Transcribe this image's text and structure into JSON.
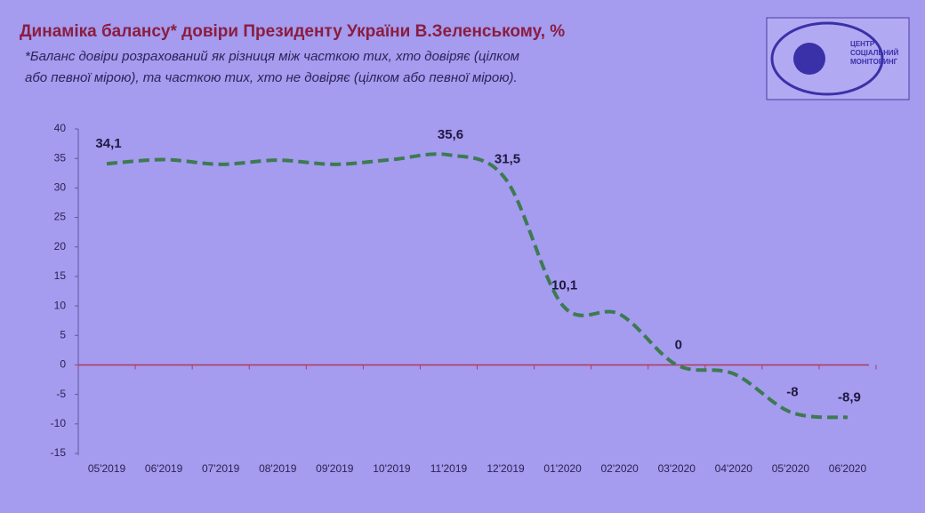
{
  "chart_data": {
    "type": "line",
    "title": "Динаміка балансу* довіри Президенту України В.Зеленському, %",
    "subtitle": [
      "*Баланс довіри розрахований як різниця між часткою тих, хто довіряє (цілком",
      "або певної мірою), та часткою тих, хто не довіряє (цілком або певної мірою)."
    ],
    "logo": [
      "ЦЕНТР",
      "СОЦІАЛЬНИЙ",
      "МОНІТОРИНГ"
    ],
    "categories": [
      "05'2019",
      "06'2019",
      "07'2019",
      "08'2019",
      "09'2019",
      "10'2019",
      "11'2019",
      "12'2019",
      "01'2020",
      "02'2020",
      "03'2020",
      "04'2020",
      "05'2020",
      "06'2020"
    ],
    "values": [
      34.1,
      34.8,
      34.0,
      34.7,
      34.0,
      34.8,
      35.6,
      31.5,
      10.1,
      8.6,
      0,
      -1.5,
      -8,
      -8.9
    ],
    "value_labels": [
      "34,1",
      null,
      null,
      null,
      null,
      null,
      "35,6",
      "31,5",
      "10,1",
      null,
      "0",
      null,
      "-8",
      "-8,9"
    ],
    "color": "#3d7a52",
    "ylim": [
      -15,
      40
    ],
    "yticks": [
      -15,
      -10,
      -5,
      0,
      5,
      10,
      15,
      20,
      25,
      30,
      35,
      40
    ]
  }
}
